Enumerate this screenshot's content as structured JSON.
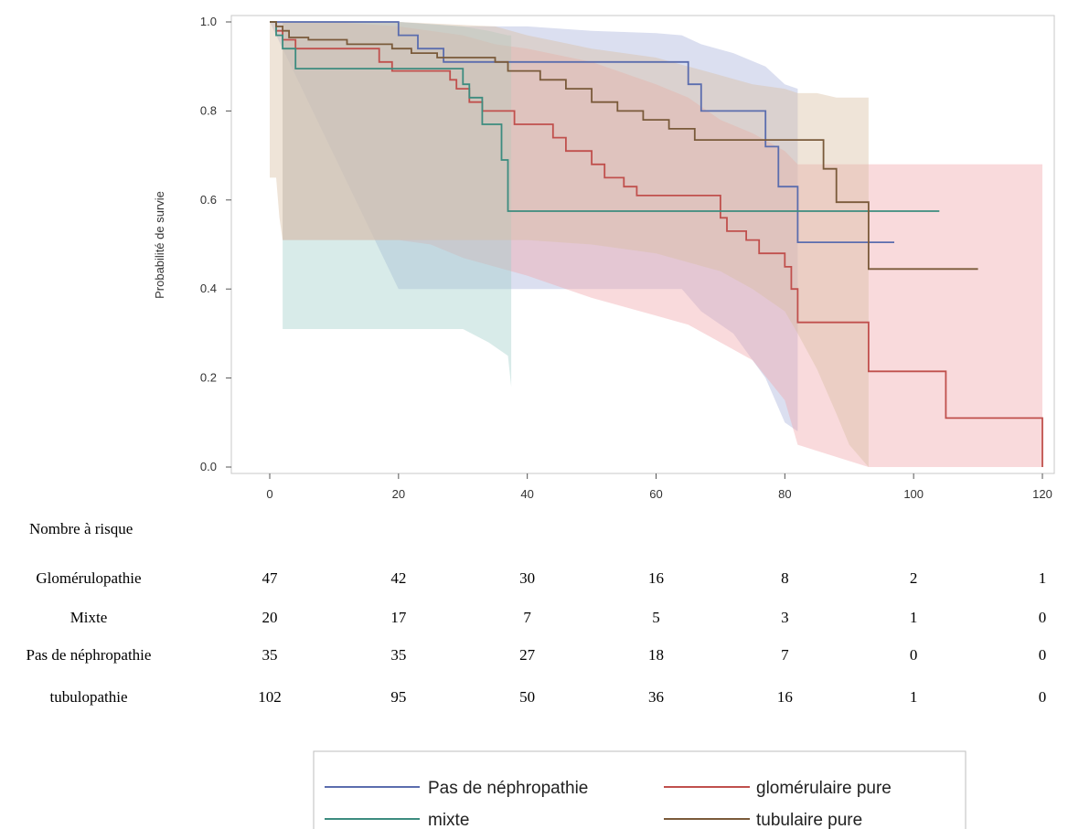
{
  "chart_data": {
    "type": "line",
    "ylabel": "Probabilité de survie",
    "xlim": [
      0,
      120
    ],
    "ylim": [
      0,
      1
    ],
    "xticks": [
      "0",
      "20",
      "40",
      "60",
      "80",
      "100",
      "120"
    ],
    "yticks": [
      "0.0",
      "0.2",
      "0.4",
      "0.6",
      "0.8",
      "1.0"
    ],
    "legend_position": "bottom",
    "series": [
      {
        "name": "Pas de néphropathie",
        "color": "#5b6dae",
        "band_color": "#a9b3dc",
        "x": [
          0,
          20,
          20,
          23,
          23,
          27,
          27,
          37,
          37,
          65,
          65,
          67,
          67,
          77,
          77,
          79,
          79,
          82,
          82,
          97
        ],
        "y": [
          1.0,
          1.0,
          0.97,
          0.97,
          0.94,
          0.94,
          0.91,
          0.91,
          0.91,
          0.91,
          0.86,
          0.86,
          0.8,
          0.8,
          0.72,
          0.72,
          0.63,
          0.63,
          0.505,
          0.505
        ],
        "band": [
          [
            0,
            1.0,
            1.0
          ],
          [
            20,
            1.0,
            0.4
          ],
          [
            30,
            0.99,
            0.4
          ],
          [
            40,
            0.99,
            0.4
          ],
          [
            50,
            0.98,
            0.4
          ],
          [
            60,
            0.975,
            0.4
          ],
          [
            64,
            0.97,
            0.4
          ],
          [
            67,
            0.95,
            0.35
          ],
          [
            72,
            0.93,
            0.3
          ],
          [
            77,
            0.9,
            0.2
          ],
          [
            80,
            0.86,
            0.1
          ],
          [
            82,
            0.85,
            0.08
          ]
        ]
      },
      {
        "name": "glomérulaire pure",
        "color": "#c0504d",
        "band_color": "#f0a8ab",
        "x": [
          0,
          1,
          1,
          2,
          2,
          4,
          4,
          17,
          17,
          19,
          19,
          28,
          28,
          29,
          29,
          31,
          31,
          33,
          33,
          38,
          38,
          44,
          44,
          46,
          46,
          50,
          50,
          52,
          52,
          55,
          55,
          57,
          57,
          60,
          60,
          62,
          62,
          70,
          70,
          71,
          71,
          74,
          74,
          76,
          76,
          80,
          80,
          81,
          81,
          82,
          82,
          93,
          93,
          105,
          105,
          120,
          120
        ],
        "y": [
          1.0,
          1.0,
          0.98,
          0.98,
          0.96,
          0.96,
          0.94,
          0.94,
          0.91,
          0.91,
          0.89,
          0.89,
          0.87,
          0.87,
          0.85,
          0.85,
          0.82,
          0.82,
          0.8,
          0.8,
          0.77,
          0.77,
          0.74,
          0.74,
          0.71,
          0.71,
          0.68,
          0.68,
          0.65,
          0.65,
          0.63,
          0.63,
          0.61,
          0.61,
          0.61,
          0.61,
          0.61,
          0.61,
          0.56,
          0.56,
          0.53,
          0.53,
          0.51,
          0.51,
          0.48,
          0.48,
          0.45,
          0.45,
          0.4,
          0.4,
          0.325,
          0.325,
          0.215,
          0.215,
          0.11,
          0.11,
          0.0
        ],
        "band": [
          [
            2,
            1.0,
            0.51
          ],
          [
            10,
            1.0,
            0.51
          ],
          [
            20,
            0.99,
            0.51
          ],
          [
            25,
            0.98,
            0.5
          ],
          [
            30,
            0.97,
            0.47
          ],
          [
            35,
            0.95,
            0.45
          ],
          [
            40,
            0.94,
            0.43
          ],
          [
            50,
            0.91,
            0.38
          ],
          [
            60,
            0.86,
            0.34
          ],
          [
            65,
            0.83,
            0.32
          ],
          [
            70,
            0.78,
            0.28
          ],
          [
            75,
            0.75,
            0.24
          ],
          [
            80,
            0.71,
            0.15
          ],
          [
            82,
            0.68,
            0.05
          ],
          [
            93,
            0.68,
            0.0
          ],
          [
            120,
            0.68,
            0.0
          ]
        ]
      },
      {
        "name": "mixte",
        "color": "#3d8c7f",
        "band_color": "#a2cfca",
        "x": [
          0,
          1,
          1,
          2,
          2,
          4,
          4,
          30,
          30,
          31,
          31,
          33,
          33,
          36,
          36,
          37,
          37,
          104
        ],
        "y": [
          1.0,
          1.0,
          0.97,
          0.97,
          0.94,
          0.94,
          0.895,
          0.895,
          0.86,
          0.86,
          0.83,
          0.83,
          0.77,
          0.77,
          0.69,
          0.69,
          0.575,
          0.575
        ],
        "band": [
          [
            2,
            1.0,
            0.31
          ],
          [
            10,
            1.0,
            0.31
          ],
          [
            20,
            1.0,
            0.31
          ],
          [
            30,
            0.99,
            0.31
          ],
          [
            34,
            0.98,
            0.28
          ],
          [
            37,
            0.97,
            0.25
          ],
          [
            37.5,
            0.97,
            0.18
          ]
        ]
      },
      {
        "name": "tubulaire pure",
        "color": "#7a5a3a",
        "band_color": "#d9bfa3",
        "x": [
          0,
          1,
          1,
          2,
          2,
          3,
          3,
          6,
          6,
          12,
          12,
          19,
          19,
          22,
          22,
          26,
          26,
          35,
          35,
          37,
          37,
          42,
          42,
          46,
          46,
          50,
          50,
          54,
          54,
          58,
          58,
          62,
          62,
          66,
          66,
          69,
          69,
          78,
          78,
          86,
          86,
          88,
          88,
          93,
          93,
          110
        ],
        "y": [
          1.0,
          1.0,
          0.99,
          0.99,
          0.98,
          0.98,
          0.965,
          0.965,
          0.96,
          0.96,
          0.95,
          0.95,
          0.94,
          0.94,
          0.93,
          0.93,
          0.92,
          0.92,
          0.91,
          0.91,
          0.89,
          0.89,
          0.87,
          0.87,
          0.85,
          0.85,
          0.82,
          0.82,
          0.8,
          0.8,
          0.78,
          0.78,
          0.76,
          0.76,
          0.735,
          0.735,
          0.735,
          0.735,
          0.735,
          0.735,
          0.67,
          0.67,
          0.595,
          0.595,
          0.445,
          0.445
        ],
        "band": [
          [
            0,
            1.0,
            0.65
          ],
          [
            1,
            1.0,
            0.65
          ],
          [
            1.5,
            1.0,
            0.56
          ],
          [
            2,
            1.0,
            0.51
          ],
          [
            20,
            1.0,
            0.51
          ],
          [
            35,
            0.99,
            0.51
          ],
          [
            40,
            0.97,
            0.51
          ],
          [
            50,
            0.94,
            0.5
          ],
          [
            60,
            0.92,
            0.48
          ],
          [
            65,
            0.9,
            0.46
          ],
          [
            70,
            0.88,
            0.44
          ],
          [
            75,
            0.86,
            0.4
          ],
          [
            80,
            0.85,
            0.35
          ],
          [
            82,
            0.84,
            0.3
          ],
          [
            85,
            0.84,
            0.22
          ],
          [
            88,
            0.83,
            0.12
          ],
          [
            90,
            0.83,
            0.05
          ],
          [
            93,
            0.83,
            0.0
          ]
        ]
      }
    ]
  },
  "risk_table": {
    "title": "Nombre à risque",
    "rows": [
      {
        "label": "Glomérulopathie",
        "values": [
          "47",
          "42",
          "30",
          "16",
          "8",
          "2",
          "1"
        ]
      },
      {
        "label": "Mixte",
        "values": [
          "20",
          "17",
          "7",
          "5",
          "3",
          "1",
          "0"
        ]
      },
      {
        "label": "Pas de néphropathie",
        "values": [
          "35",
          "35",
          "27",
          "18",
          "7",
          "0",
          "0"
        ]
      },
      {
        "label": "tubulopathie",
        "values": [
          "102",
          "95",
          "50",
          "36",
          "16",
          "1",
          "0"
        ]
      }
    ]
  },
  "legend": {
    "items": [
      {
        "label": "Pas de néphropathie",
        "color": "#5b6dae"
      },
      {
        "label": "glomérulaire pure",
        "color": "#c0504d"
      },
      {
        "label": "mixte",
        "color": "#3d8c7f"
      },
      {
        "label": "tubulaire pure",
        "color": "#7a5a3a"
      }
    ]
  }
}
